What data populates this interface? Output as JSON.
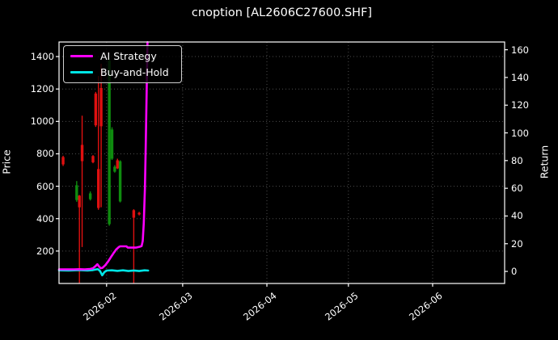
{
  "title": "cnoption [AL2606C27600.SHF]",
  "axes": {
    "left_label": "Price",
    "right_label": "Return",
    "left_ticks": [
      200,
      400,
      600,
      800,
      1000,
      1200,
      1400
    ],
    "right_ticks": [
      0,
      20,
      40,
      60,
      80,
      100,
      120,
      140,
      160
    ],
    "x_tick_labels": [
      "2026-02",
      "2026-03",
      "2026-04",
      "2026-05",
      "2026-06"
    ],
    "x_tick_dates": [
      "2026-02-01",
      "2026-03-01",
      "2026-04-01",
      "2026-05-01",
      "2026-06-01"
    ]
  },
  "legend": {
    "items": [
      {
        "label": "AI Strategy",
        "color": "#ff00ff"
      },
      {
        "label": "Buy-and-Hold",
        "color": "#00e5e5"
      }
    ]
  },
  "colors": {
    "background": "#000000",
    "text": "#ffffff",
    "spine": "#ffffff",
    "grid": "#4d4d4d",
    "candle_up": "#0f8c0f",
    "candle_down": "#e01010",
    "ai_strategy": "#ff00ff",
    "buy_and_hold": "#00e5e5"
  },
  "chart_data": {
    "type": "candlestick",
    "title": "cnoption [AL2606C27600.SHF]",
    "x_axis": {
      "epoch": "2026-02-01",
      "xlim_days": [
        -17.5,
        146.5
      ],
      "grid": "dotted"
    },
    "price_axis": {
      "label": "Price",
      "ylim": [
        0,
        1490
      ]
    },
    "return_axis": {
      "label": "Return",
      "ylim": [
        -8.7,
        165.6
      ]
    },
    "candles": [
      {
        "date": "2026-01-16",
        "open": 780,
        "high": 788,
        "low": 725,
        "close": 735
      },
      {
        "date": "2026-01-21",
        "open": 515,
        "high": 632,
        "low": 504,
        "close": 606
      },
      {
        "date": "2026-01-22",
        "open": 542,
        "high": 546,
        "low": 0,
        "close": 470
      },
      {
        "date": "2026-01-23",
        "open": 855,
        "high": 1035,
        "low": 225,
        "close": 755
      },
      {
        "date": "2026-01-26",
        "open": 520,
        "high": 568,
        "low": 512,
        "close": 556
      },
      {
        "date": "2026-01-27",
        "open": 786,
        "high": 792,
        "low": 742,
        "close": 748
      },
      {
        "date": "2026-01-28",
        "open": 1172,
        "high": 1182,
        "low": 966,
        "close": 976
      },
      {
        "date": "2026-01-29",
        "open": 706,
        "high": 1280,
        "low": 455,
        "close": 466
      },
      {
        "date": "2026-01-30",
        "open": 1206,
        "high": 1356,
        "low": 470,
        "close": 970
      },
      {
        "date": "2026-02-02",
        "open": 366,
        "high": 1390,
        "low": 356,
        "close": 1376
      },
      {
        "date": "2026-02-03",
        "open": 770,
        "high": 964,
        "low": 762,
        "close": 950
      },
      {
        "date": "2026-02-04",
        "open": 690,
        "high": 730,
        "low": 684,
        "close": 720
      },
      {
        "date": "2026-02-05",
        "open": 760,
        "high": 770,
        "low": 706,
        "close": 710
      },
      {
        "date": "2026-02-06",
        "open": 506,
        "high": 760,
        "low": 500,
        "close": 754
      },
      {
        "date": "2026-02-11",
        "open": 452,
        "high": 458,
        "low": 0,
        "close": 406
      },
      {
        "date": "2026-02-13",
        "open": 436,
        "high": 442,
        "low": 420,
        "close": 426
      }
    ],
    "series": [
      {
        "name": "AI Strategy",
        "axis": "return",
        "color": "#ff00ff",
        "points": [
          [
            -17.5,
            1.5
          ],
          [
            -12,
            1.5
          ],
          [
            -10,
            1.6
          ],
          [
            -8,
            1.5
          ],
          [
            -6,
            1.8
          ],
          [
            -5,
            2.3
          ],
          [
            -4,
            4.0
          ],
          [
            -3.4,
            5.2
          ],
          [
            -2.8,
            3.6
          ],
          [
            -2.2,
            2.3
          ],
          [
            -1.5,
            2.6
          ],
          [
            -0.5,
            4.5
          ],
          [
            0.5,
            7.0
          ],
          [
            1.5,
            10.0
          ],
          [
            2.5,
            13.0
          ],
          [
            3.5,
            15.8
          ],
          [
            4.5,
            17.6
          ],
          [
            5,
            18.1
          ],
          [
            7.3,
            18.1
          ],
          [
            7.8,
            17.2
          ],
          [
            10.8,
            17.2
          ],
          [
            12.2,
            17.8
          ],
          [
            12.9,
            18.3
          ],
          [
            13.3,
            22
          ],
          [
            13.7,
            35
          ],
          [
            14.1,
            60
          ],
          [
            14.4,
            90
          ],
          [
            14.65,
            118
          ],
          [
            14.85,
            142
          ],
          [
            15.05,
            165.5
          ]
        ]
      },
      {
        "name": "Buy-and-Hold",
        "axis": "return",
        "color": "#00e5e5",
        "points": [
          [
            -17.5,
            0.8
          ],
          [
            -14,
            0.7
          ],
          [
            -10,
            0.9
          ],
          [
            -7,
            0.7
          ],
          [
            -5,
            1.0
          ],
          [
            -4,
            1.4
          ],
          [
            -3.2,
            1.6
          ],
          [
            -2.4,
            0.3
          ],
          [
            -1.6,
            -2.8
          ],
          [
            -0.8,
            -0.5
          ],
          [
            0,
            0.6
          ],
          [
            2,
            0.8
          ],
          [
            4,
            0.4
          ],
          [
            6,
            0.8
          ],
          [
            8,
            0.3
          ],
          [
            10,
            0.7
          ],
          [
            12,
            0.3
          ],
          [
            14,
            0.8
          ],
          [
            15.3,
            0.6
          ]
        ]
      }
    ]
  }
}
